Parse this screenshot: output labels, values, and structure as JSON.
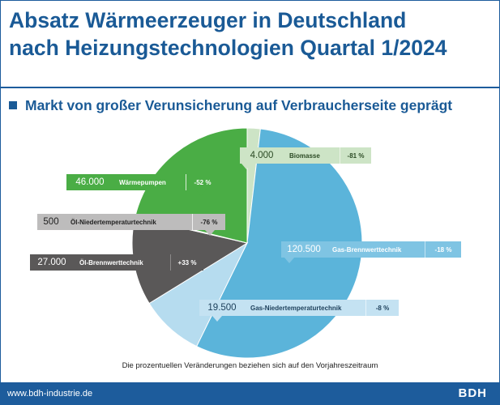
{
  "header": {
    "title_line1": "Absatz Wärmeerzeuger in Deutschland",
    "title_line2": "nach Heizungstechnologien Quartal 1/2024",
    "subtitle": "Markt von großer Verunsicherung auf Verbraucherseite geprägt"
  },
  "chart_data": {
    "type": "pie",
    "slices": [
      {
        "label": "Biomasse",
        "value": 4000,
        "value_text": "4.000",
        "change": "-81 %",
        "color": "#cde4c6"
      },
      {
        "label": "Gas-Brennwerttechnik",
        "value": 120500,
        "value_text": "120.500",
        "change": "-18 %",
        "color": "#5bb4da"
      },
      {
        "label": "Gas-Niedertemperaturtechnik",
        "value": 19500,
        "value_text": "19.500",
        "change": "-8 %",
        "color": "#b6dcef"
      },
      {
        "label": "Öl-Brennwerttechnik",
        "value": 27000,
        "value_text": "27.000",
        "change": "+33 %",
        "color": "#5a5858"
      },
      {
        "label": "Öl-Niedertemperaturtechnik",
        "value": 500,
        "value_text": "500",
        "change": "-76 %",
        "color": "#bdbcbc"
      },
      {
        "label": "Wärmepumpen",
        "value": 46000,
        "value_text": "46.000",
        "change": "-52 %",
        "color": "#4aad45"
      }
    ]
  },
  "footnote": "Die prozentuellen Veränderungen beziehen sich auf den Vorjahreszeitraum",
  "footer": {
    "url": "www.bdh-industrie.de",
    "logo": "BDH"
  }
}
